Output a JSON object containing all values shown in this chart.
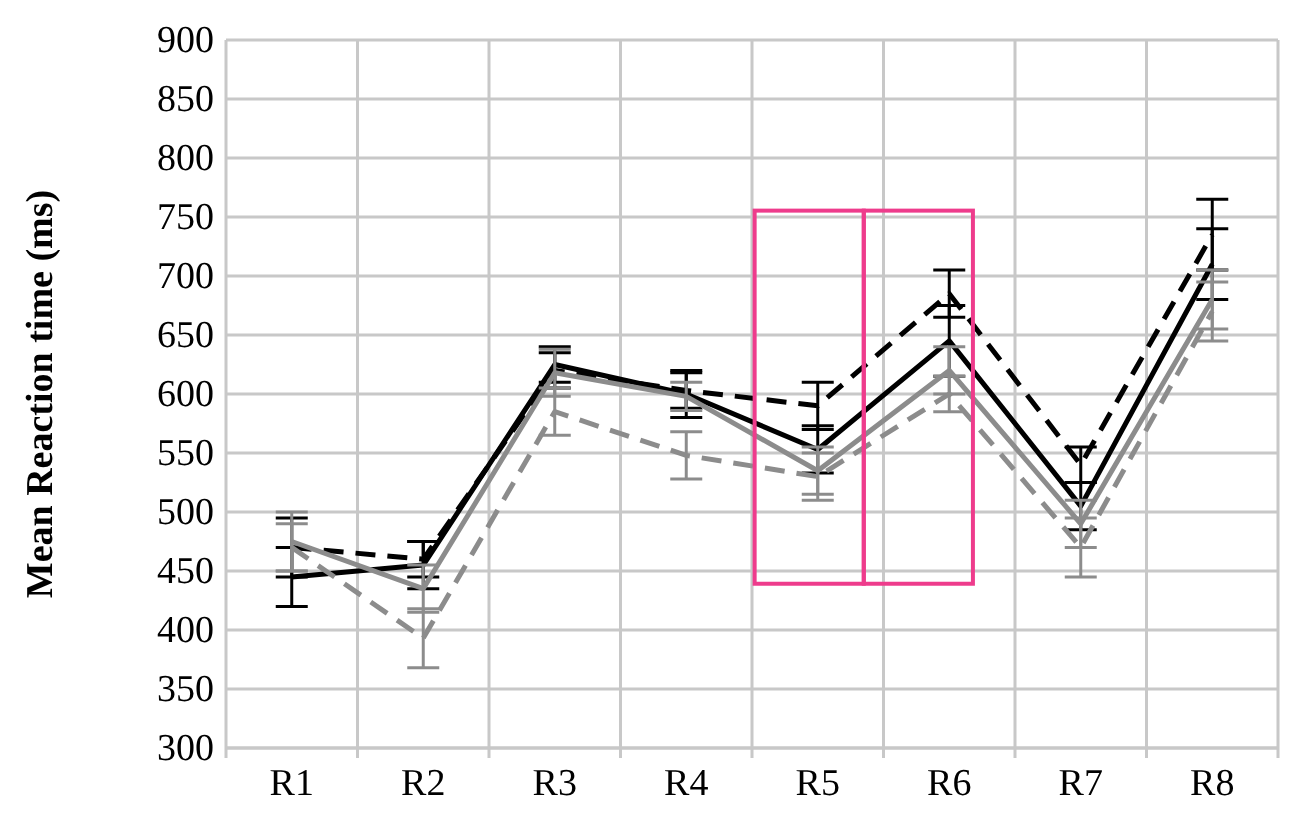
{
  "chart_data": {
    "type": "line",
    "ylabel": "Mean Reaction time (ms)",
    "categories": [
      "R1",
      "R2",
      "R3",
      "R4",
      "R5",
      "R6",
      "R7",
      "R8"
    ],
    "ylim": [
      300,
      900
    ],
    "yticks": [
      300,
      350,
      400,
      450,
      500,
      550,
      600,
      650,
      700,
      750,
      800,
      850,
      900
    ],
    "grid": true,
    "marker": "none",
    "series": [
      {
        "color": "#000000",
        "line_style": "solid",
        "values": [
          445,
          455,
          625,
          600,
          553,
          645,
          505,
          710
        ],
        "errors": [
          25,
          20,
          15,
          20,
          20,
          30,
          20,
          30
        ]
      },
      {
        "color": "#000000",
        "line_style": "dashed",
        "values": [
          470,
          460,
          620,
          603,
          590,
          685,
          540,
          735
        ],
        "errors": [
          25,
          15,
          15,
          15,
          20,
          20,
          15,
          30
        ]
      },
      {
        "color": "#8c8c8c",
        "line_style": "solid",
        "values": [
          475,
          435,
          618,
          598,
          535,
          620,
          490,
          680
        ],
        "errors": [
          25,
          20,
          20,
          12,
          20,
          20,
          20,
          25
        ]
      },
      {
        "color": "#8c8c8c",
        "line_style": "dashed",
        "values": [
          470,
          393,
          585,
          548,
          530,
          600,
          470,
          670
        ],
        "errors": [
          20,
          25,
          20,
          20,
          20,
          15,
          25,
          25
        ]
      }
    ]
  }
}
